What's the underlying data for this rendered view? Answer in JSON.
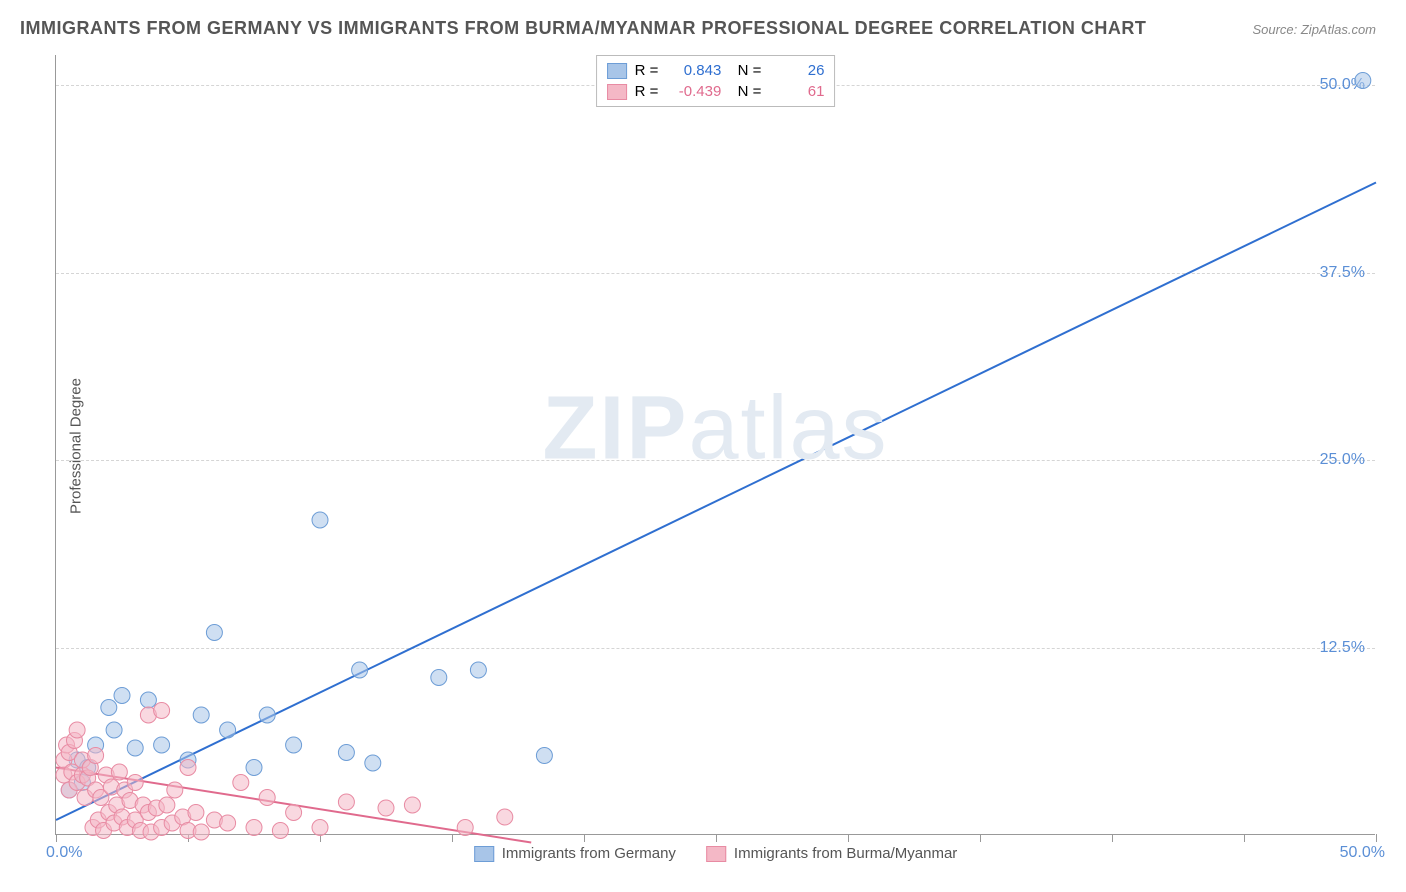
{
  "title": "IMMIGRANTS FROM GERMANY VS IMMIGRANTS FROM BURMA/MYANMAR PROFESSIONAL DEGREE CORRELATION CHART",
  "source": "Source: ZipAtlas.com",
  "ylabel": "Professional Degree",
  "watermark": {
    "bold": "ZIP",
    "rest": "atlas"
  },
  "chart": {
    "type": "scatter-with-regression",
    "xlim": [
      0,
      50
    ],
    "ylim": [
      0,
      52
    ],
    "x_tick_step": 5,
    "x_min_label": "0.0%",
    "x_max_label": "50.0%",
    "y_ticks": [
      {
        "value": 12.5,
        "label": "12.5%"
      },
      {
        "value": 25.0,
        "label": "25.0%"
      },
      {
        "value": 37.5,
        "label": "37.5%"
      },
      {
        "value": 50.0,
        "label": "50.0%"
      }
    ],
    "grid_color": "#d5d5d5",
    "background_color": "#ffffff",
    "series": [
      {
        "name": "Immigrants from Germany",
        "color_fill": "#a8c5e8",
        "color_stroke": "#6d9dd6",
        "line_color": "#2f6fd0",
        "r": "0.843",
        "n": "26",
        "marker_radius": 8,
        "fill_opacity": 0.55,
        "line": {
          "x1": 0,
          "y1": 1.0,
          "x2": 50,
          "y2": 43.5
        },
        "points": [
          [
            0.5,
            3.0
          ],
          [
            0.8,
            5.0
          ],
          [
            1.0,
            3.5
          ],
          [
            1.2,
            4.5
          ],
          [
            1.5,
            6.0
          ],
          [
            2.0,
            8.5
          ],
          [
            2.2,
            7.0
          ],
          [
            2.5,
            9.3
          ],
          [
            3.0,
            5.8
          ],
          [
            3.5,
            9.0
          ],
          [
            4.0,
            6.0
          ],
          [
            5.0,
            5.0
          ],
          [
            5.5,
            8.0
          ],
          [
            6.0,
            13.5
          ],
          [
            6.5,
            7.0
          ],
          [
            7.5,
            4.5
          ],
          [
            8.0,
            8.0
          ],
          [
            9.0,
            6.0
          ],
          [
            10.0,
            21.0
          ],
          [
            11.0,
            5.5
          ],
          [
            11.5,
            11.0
          ],
          [
            12.0,
            4.8
          ],
          [
            14.5,
            10.5
          ],
          [
            16.0,
            11.0
          ],
          [
            18.5,
            5.3
          ],
          [
            49.5,
            50.3
          ]
        ]
      },
      {
        "name": "Immigrants from Burma/Myanmar",
        "color_fill": "#f4b8c6",
        "color_stroke": "#e88ba3",
        "line_color": "#e06a8d",
        "r": "-0.439",
        "n": "61",
        "marker_radius": 8,
        "fill_opacity": 0.55,
        "line": {
          "x1": 0,
          "y1": 4.5,
          "x2": 18,
          "y2": -0.5
        },
        "points": [
          [
            0.3,
            4.0
          ],
          [
            0.3,
            5.0
          ],
          [
            0.4,
            6.0
          ],
          [
            0.5,
            3.0
          ],
          [
            0.5,
            5.5
          ],
          [
            0.6,
            4.2
          ],
          [
            0.7,
            6.3
          ],
          [
            0.8,
            3.5
          ],
          [
            0.8,
            7.0
          ],
          [
            1.0,
            4.0
          ],
          [
            1.0,
            5.0
          ],
          [
            1.1,
            2.5
          ],
          [
            1.2,
            3.8
          ],
          [
            1.3,
            4.5
          ],
          [
            1.4,
            0.5
          ],
          [
            1.5,
            3.0
          ],
          [
            1.5,
            5.3
          ],
          [
            1.6,
            1.0
          ],
          [
            1.7,
            2.5
          ],
          [
            1.8,
            0.3
          ],
          [
            1.9,
            4.0
          ],
          [
            2.0,
            1.5
          ],
          [
            2.1,
            3.2
          ],
          [
            2.2,
            0.8
          ],
          [
            2.3,
            2.0
          ],
          [
            2.4,
            4.2
          ],
          [
            2.5,
            1.2
          ],
          [
            2.6,
            3.0
          ],
          [
            2.7,
            0.5
          ],
          [
            2.8,
            2.3
          ],
          [
            3.0,
            1.0
          ],
          [
            3.0,
            3.5
          ],
          [
            3.2,
            0.3
          ],
          [
            3.3,
            2.0
          ],
          [
            3.5,
            1.5
          ],
          [
            3.5,
            8.0
          ],
          [
            3.6,
            0.2
          ],
          [
            3.8,
            1.8
          ],
          [
            4.0,
            0.5
          ],
          [
            4.0,
            8.3
          ],
          [
            4.2,
            2.0
          ],
          [
            4.4,
            0.8
          ],
          [
            4.5,
            3.0
          ],
          [
            4.8,
            1.2
          ],
          [
            5.0,
            0.3
          ],
          [
            5.0,
            4.5
          ],
          [
            5.3,
            1.5
          ],
          [
            5.5,
            0.2
          ],
          [
            6.0,
            1.0
          ],
          [
            6.5,
            0.8
          ],
          [
            7.0,
            3.5
          ],
          [
            7.5,
            0.5
          ],
          [
            8.0,
            2.5
          ],
          [
            8.5,
            0.3
          ],
          [
            9.0,
            1.5
          ],
          [
            10.0,
            0.5
          ],
          [
            11.0,
            2.2
          ],
          [
            12.5,
            1.8
          ],
          [
            13.5,
            2.0
          ],
          [
            15.5,
            0.5
          ],
          [
            17.0,
            1.2
          ]
        ]
      }
    ],
    "legend_bottom_position": "bottom-center",
    "legend_top_position": "top-center"
  }
}
